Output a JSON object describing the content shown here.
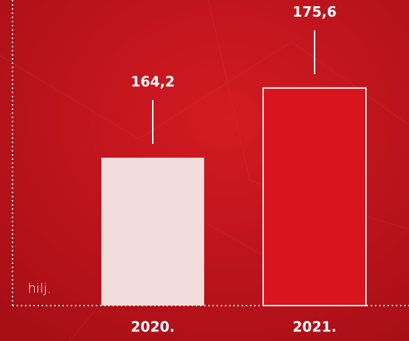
{
  "chart_data": {
    "type": "bar",
    "unit": "hilj.",
    "categories": [
      "2020.",
      "2021."
    ],
    "values": [
      164.2,
      175.6
    ],
    "value_labels": [
      "164,2",
      "175,6"
    ],
    "colors": [
      "#f3dcdc",
      "#d9141e"
    ],
    "ylim": [
      140,
      190
    ]
  }
}
